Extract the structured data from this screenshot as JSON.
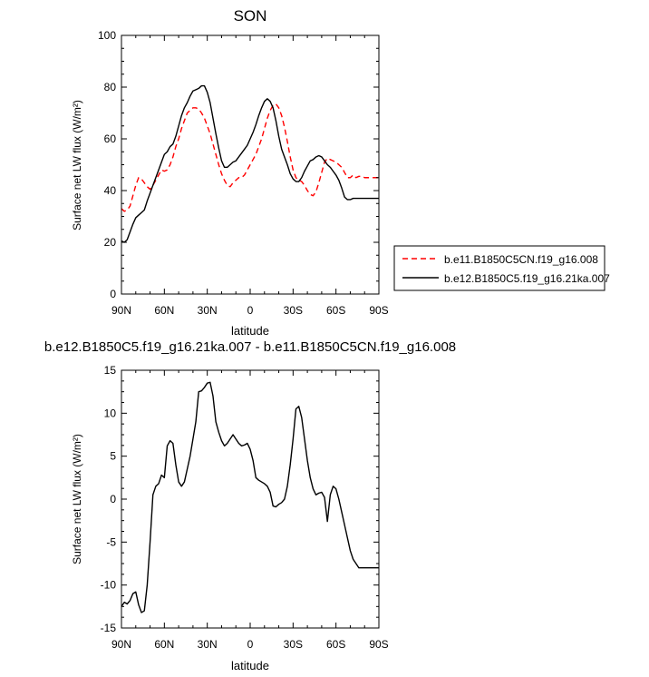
{
  "chart_data": [
    {
      "type": "line",
      "title": "SON",
      "xlabel": "latitude",
      "ylabel": "Surface net LW flux (W/m²)",
      "xlim": [
        90,
        -90
      ],
      "ylim": [
        0,
        100
      ],
      "xticks": [
        90,
        60,
        30,
        0,
        -30,
        -60,
        -90
      ],
      "xtick_labels": [
        "90N",
        "60N",
        "30N",
        "0",
        "30S",
        "60S",
        "90S"
      ],
      "yticks": [
        0,
        20,
        40,
        60,
        80,
        100
      ],
      "ytick_labels": [
        "0",
        "20",
        "40",
        "60",
        "80",
        "100"
      ],
      "grid": false,
      "legend_placement": "outside-right",
      "series": [
        {
          "name": "b.e11.B1850C5CN.f19_g16.008",
          "color": "#ff0000",
          "dash": "dashed",
          "x": [
            90,
            88,
            86,
            84,
            82,
            80,
            78,
            76,
            74,
            72,
            70,
            68,
            66,
            64,
            62,
            60,
            58,
            56,
            54,
            52,
            50,
            48,
            46,
            44,
            42,
            40,
            38,
            36,
            34,
            32,
            30,
            28,
            26,
            24,
            22,
            20,
            18,
            16,
            14,
            12,
            10,
            8,
            6,
            4,
            2,
            0,
            -2,
            -4,
            -6,
            -8,
            -10,
            -12,
            -14,
            -16,
            -18,
            -20,
            -22,
            -24,
            -26,
            -28,
            -30,
            -32,
            -34,
            -36,
            -38,
            -40,
            -42,
            -44,
            -46,
            -48,
            -50,
            -52,
            -54,
            -56,
            -58,
            -60,
            -62,
            -64,
            -66,
            -68,
            -70,
            -72,
            -74,
            -76,
            -78,
            -80,
            -82,
            -84,
            -86,
            -88,
            -90
          ],
          "y": [
            33,
            32,
            32.5,
            34,
            38,
            42,
            45,
            44.5,
            43,
            41.5,
            40.5,
            42,
            44,
            46,
            48,
            47.5,
            48,
            50,
            53,
            57,
            60,
            64,
            67,
            70,
            71,
            72,
            72,
            71.5,
            70,
            68,
            65,
            62,
            58,
            54,
            50,
            46.5,
            44,
            42,
            41.5,
            43,
            44,
            45,
            45,
            46,
            48,
            50,
            52,
            54,
            57,
            60,
            64,
            68,
            71,
            73,
            73.5,
            72,
            69,
            64.5,
            59,
            53,
            48,
            45,
            44,
            43.5,
            42,
            40,
            38.5,
            38,
            39.5,
            43,
            47,
            51,
            52.5,
            52,
            51.5,
            51,
            50,
            49,
            47,
            45,
            45,
            46,
            45,
            45.5,
            45.5,
            45,
            45,
            45,
            45,
            45,
            45
          ]
        },
        {
          "name": "b.e12.B1850C5.f19_g16.21ka.007",
          "color": "#000000",
          "dash": "solid",
          "x": [
            90,
            88,
            86,
            84,
            82,
            80,
            78,
            76,
            74,
            72,
            70,
            68,
            66,
            64,
            62,
            60,
            58,
            56,
            54,
            52,
            50,
            48,
            46,
            44,
            42,
            40,
            38,
            36,
            34,
            32,
            30,
            28,
            26,
            24,
            22,
            20,
            18,
            16,
            14,
            12,
            10,
            8,
            6,
            4,
            2,
            0,
            -2,
            -4,
            -6,
            -8,
            -10,
            -12,
            -14,
            -16,
            -18,
            -20,
            -22,
            -24,
            -26,
            -28,
            -30,
            -32,
            -34,
            -36,
            -38,
            -40,
            -42,
            -44,
            -46,
            -48,
            -50,
            -52,
            -54,
            -56,
            -58,
            -60,
            -62,
            -64,
            -66,
            -68,
            -70,
            -72,
            -74,
            -76,
            -78,
            -80,
            -82,
            -84,
            -86,
            -88,
            -90
          ],
          "y": [
            20.5,
            20,
            21,
            24,
            27,
            29.5,
            30.5,
            31.5,
            32.5,
            36,
            39,
            42,
            45,
            48,
            51,
            54,
            55,
            57,
            58,
            61,
            65,
            69,
            72,
            74,
            76.5,
            78.5,
            79,
            79.5,
            80.5,
            80.5,
            78,
            74,
            68,
            62,
            56.5,
            51.5,
            49,
            49,
            50,
            51,
            51.5,
            53,
            54.5,
            56,
            57.5,
            60,
            62.5,
            65.5,
            69,
            72,
            74.5,
            75.5,
            74.5,
            72,
            67,
            61,
            56,
            53,
            50,
            46.5,
            44.5,
            43.5,
            43.5,
            45,
            47.5,
            49.5,
            51.5,
            52,
            53,
            53.5,
            53,
            51.5,
            50,
            49,
            47.5,
            46,
            44,
            41,
            37.5,
            36.5,
            36.5,
            37,
            37,
            37,
            37,
            37,
            37,
            37,
            37,
            37,
            37
          ]
        }
      ]
    },
    {
      "type": "line",
      "title": "b.e12.B1850C5.f19_g16.21ka.007 - b.e11.B1850C5CN.f19_g16.008",
      "xlabel": "latitude",
      "ylabel": "Surface net LW flux (W/m²)",
      "xlim": [
        90,
        -90
      ],
      "ylim": [
        -15,
        15
      ],
      "xticks": [
        90,
        60,
        30,
        0,
        -30,
        -60,
        -90
      ],
      "xtick_labels": [
        "90N",
        "60N",
        "30N",
        "0",
        "30S",
        "60S",
        "90S"
      ],
      "yticks": [
        -15,
        -10,
        -5,
        0,
        5,
        10,
        15
      ],
      "ytick_labels": [
        "-15",
        "-10",
        "-5",
        "0",
        "5",
        "10",
        "15"
      ],
      "grid": false,
      "series": [
        {
          "color": "#000000",
          "dash": "solid",
          "x": [
            90,
            88,
            86,
            84,
            82,
            80,
            78,
            76,
            74,
            72,
            70,
            68,
            66,
            64,
            62,
            60,
            58,
            56,
            54,
            52,
            50,
            48,
            46,
            44,
            42,
            40,
            38,
            36,
            34,
            32,
            30,
            28,
            26,
            24,
            22,
            20,
            18,
            16,
            14,
            12,
            10,
            8,
            6,
            4,
            2,
            0,
            -2,
            -4,
            -6,
            -8,
            -10,
            -12,
            -14,
            -16,
            -18,
            -20,
            -22,
            -24,
            -26,
            -28,
            -30,
            -32,
            -34,
            -36,
            -38,
            -40,
            -42,
            -44,
            -46,
            -48,
            -50,
            -52,
            -54,
            -56,
            -58,
            -60,
            -62,
            -64,
            -66,
            -68,
            -70,
            -72,
            -74,
            -76,
            -78,
            -80,
            -82,
            -84,
            -86,
            -88,
            -90
          ],
          "y": [
            -12.5,
            -12,
            -12.2,
            -11.8,
            -11,
            -10.8,
            -12.3,
            -13.2,
            -13,
            -10,
            -5,
            0.5,
            1.5,
            1.8,
            2.8,
            2.5,
            6.2,
            6.8,
            6.5,
            4,
            2,
            1.5,
            2,
            3.5,
            5,
            7,
            9,
            12.5,
            12.6,
            13,
            13.5,
            13.6,
            12,
            9,
            7.8,
            6.8,
            6.2,
            6.5,
            7,
            7.5,
            7,
            6.5,
            6.2,
            6.3,
            6.5,
            5.8,
            4.5,
            2.5,
            2.2,
            2,
            1.8,
            1.5,
            0.8,
            -0.8,
            -0.9,
            -0.6,
            -0.4,
            0,
            1.5,
            4,
            7,
            10.5,
            10.8,
            9.5,
            7,
            4.5,
            2.5,
            1.2,
            0.5,
            0.7,
            0.8,
            0.2,
            -2.6,
            0.5,
            1.5,
            1.2,
            0,
            -1.5,
            -3,
            -4.5,
            -6,
            -7,
            -7.5,
            -8,
            -8,
            -8,
            -8,
            -8,
            -8,
            -8,
            -8
          ]
        }
      ]
    }
  ]
}
